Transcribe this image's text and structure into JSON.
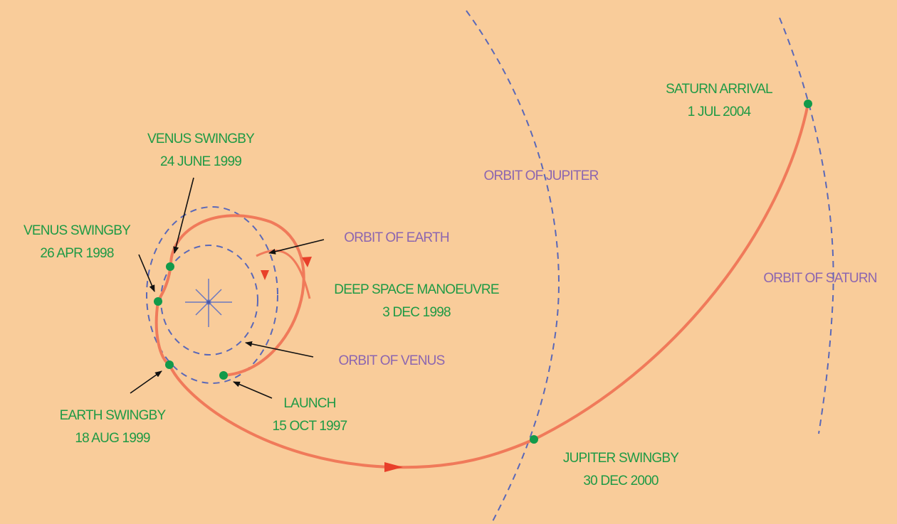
{
  "events": [
    {
      "name": "VENUS SWINGBY",
      "date": "24 JUNE 1999"
    },
    {
      "name": "VENUS SWINGBY",
      "date": "26 APR 1998"
    },
    {
      "name": "EARTH SWINGBY",
      "date": "18 AUG 1999"
    },
    {
      "name": "LAUNCH",
      "date": "15 OCT 1997"
    },
    {
      "name": "DEEP SPACE MANOEUVRE",
      "date": "3 DEC 1998"
    },
    {
      "name": "JUPITER SWINGBY",
      "date": "30 DEC 2000"
    },
    {
      "name": "SATURN ARRIVAL",
      "date": "1 JUL 2004"
    }
  ],
  "orbits": [
    "ORBIT OF EARTH",
    "ORBIT OF VENUS",
    "ORBIT OF JUPITER",
    "ORBIT OF SATURN"
  ]
}
